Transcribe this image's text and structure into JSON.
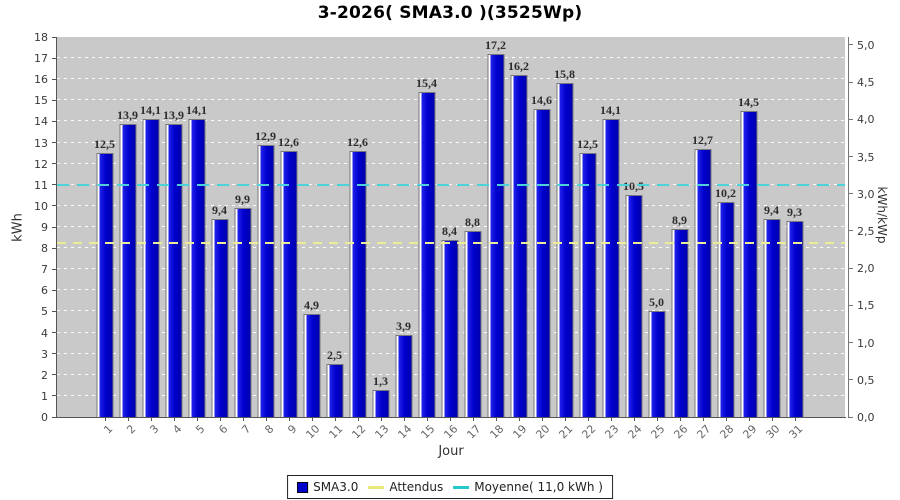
{
  "title": "3-2026( SMA3.0 )(3525Wp)",
  "chart_data": {
    "type": "bar",
    "title": "3-2026( SMA3.0 )(3525Wp)",
    "xlabel": "Jour",
    "ylabel_left": "kWh",
    "ylabel_right": "kWh/kWp",
    "ylim_left": [
      0,
      18
    ],
    "ylim_right": [
      0.0,
      5.0
    ],
    "grid": true,
    "kwp_factor": 3.525,
    "categories": [
      "1",
      "2",
      "3",
      "4",
      "5",
      "6",
      "7",
      "8",
      "9",
      "10",
      "11",
      "12",
      "13",
      "14",
      "15",
      "16",
      "17",
      "18",
      "19",
      "20",
      "21",
      "22",
      "23",
      "24",
      "25",
      "26",
      "27",
      "28",
      "29",
      "30",
      "31"
    ],
    "series": [
      {
        "name": "SMA3.0",
        "values": [
          12.5,
          13.9,
          14.1,
          13.9,
          14.1,
          9.4,
          9.9,
          12.9,
          12.6,
          4.9,
          2.5,
          12.6,
          1.3,
          3.9,
          15.4,
          8.4,
          8.8,
          17.2,
          16.2,
          14.6,
          15.8,
          12.5,
          14.1,
          10.5,
          5.0,
          8.9,
          12.7,
          10.2,
          14.5,
          9.4,
          9.3
        ],
        "value_labels": [
          "12,5",
          "13,9",
          "14,1",
          "13,9",
          "14,1",
          "9,4",
          "9,9",
          "12,9",
          "12,6",
          "4,9",
          "2,5",
          "12,6",
          "1,3",
          "3,9",
          "15,4",
          "8,4",
          "8,8",
          "17,2",
          "16,2",
          "14,6",
          "15,8",
          "12,5",
          "14,1",
          "10,5",
          "5,0",
          "8,9",
          "12,7",
          "10,2",
          "14,5",
          "9,4",
          "9,3"
        ]
      }
    ],
    "left_ticks": [
      "0",
      "1",
      "2",
      "3",
      "4",
      "5",
      "6",
      "7",
      "8",
      "9",
      "10",
      "11",
      "12",
      "13",
      "14",
      "15",
      "16",
      "17",
      "18"
    ],
    "right_ticks": [
      {
        "label": "0,0",
        "value": 0.0
      },
      {
        "label": "0,5",
        "value": 0.5
      },
      {
        "label": "1,0",
        "value": 1.0
      },
      {
        "label": "1,5",
        "value": 1.5
      },
      {
        "label": "2,0",
        "value": 2.0
      },
      {
        "label": "2,5",
        "value": 2.5
      },
      {
        "label": "3,0",
        "value": 3.0
      },
      {
        "label": "3,5",
        "value": 3.5
      },
      {
        "label": "4,0",
        "value": 4.0
      },
      {
        "label": "4,5",
        "value": 4.5
      },
      {
        "label": "5,0",
        "value": 5.0
      }
    ],
    "reference_lines": [
      {
        "name": "Attendus",
        "value_kwh": 8.25,
        "color": "#ecec96",
        "style": "dashed",
        "dash": 9,
        "gap": 7
      },
      {
        "name": "Moyenne",
        "value_kwh": 11.0,
        "color": "#4cd2d8",
        "style": "dashed",
        "dash": 12,
        "gap": 8
      }
    ],
    "legend": {
      "position": "bottom",
      "items": [
        {
          "label": "SMA3.0",
          "swatch": "square",
          "color": "#0000cc"
        },
        {
          "label": "Attendus",
          "swatch": "line",
          "color": "#e9e97a"
        },
        {
          "label": "Moyenne( 11,0 kWh )",
          "swatch": "line",
          "color": "#27c8cd"
        }
      ]
    }
  },
  "colors": {
    "plot_background": "#c9c9c9",
    "bar_fill": "#0000cd",
    "bar_highlight": "#ffffff",
    "bar_border": "#78787c",
    "gridline": "#ffffff",
    "axis": "#555555",
    "tick_label": "#3a3a3a",
    "category_label": "#666666"
  }
}
